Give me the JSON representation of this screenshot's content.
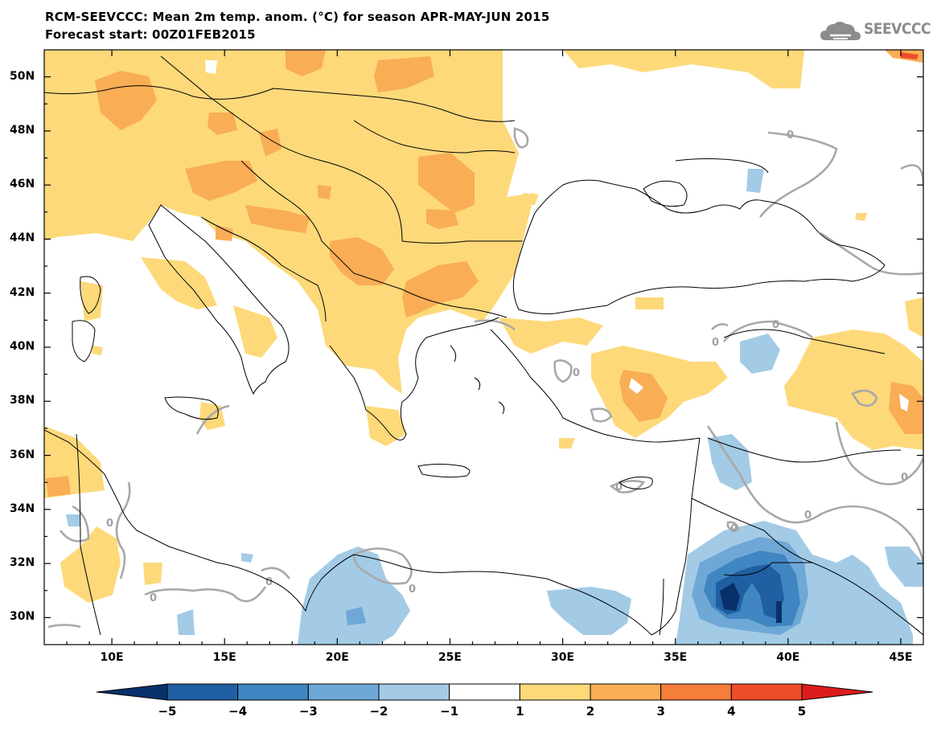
{
  "header": {
    "title_line1": "RCM-SEEVCCC: Mean 2m temp. anom. (°C) for season APR-MAY-JUN 2015",
    "title_line2": "Forecast start: 00Z01FEB2015",
    "logo_text": "SEEVCCC",
    "logo_icon": "cloud-icon"
  },
  "map": {
    "lat_range": [
      29,
      51
    ],
    "lon_range": [
      7,
      46
    ],
    "lat_labels": [
      "50N",
      "48N",
      "46N",
      "44N",
      "42N",
      "40N",
      "38N",
      "36N",
      "34N",
      "32N",
      "30N"
    ],
    "lon_labels": [
      "10E",
      "15E",
      "20E",
      "25E",
      "30E",
      "35E",
      "40E",
      "45E"
    ],
    "contour_label": "0",
    "contour_labels": [
      "0",
      "0",
      "0",
      "0",
      "0",
      "0",
      "0",
      "0",
      "0",
      "0",
      "0",
      "0"
    ]
  },
  "colorbar": {
    "labels": [
      "−5",
      "−4",
      "−3",
      "−2",
      "−1",
      "1",
      "2",
      "3",
      "4",
      "5"
    ],
    "colors": [
      "#08306b",
      "#1f5fa2",
      "#3f86c2",
      "#6fa8d6",
      "#a3cbe6",
      "#ffffff",
      "#fdd97a",
      "#f9ad55",
      "#f67e3b",
      "#ee4d2a",
      "#dc1c1c"
    ]
  }
}
